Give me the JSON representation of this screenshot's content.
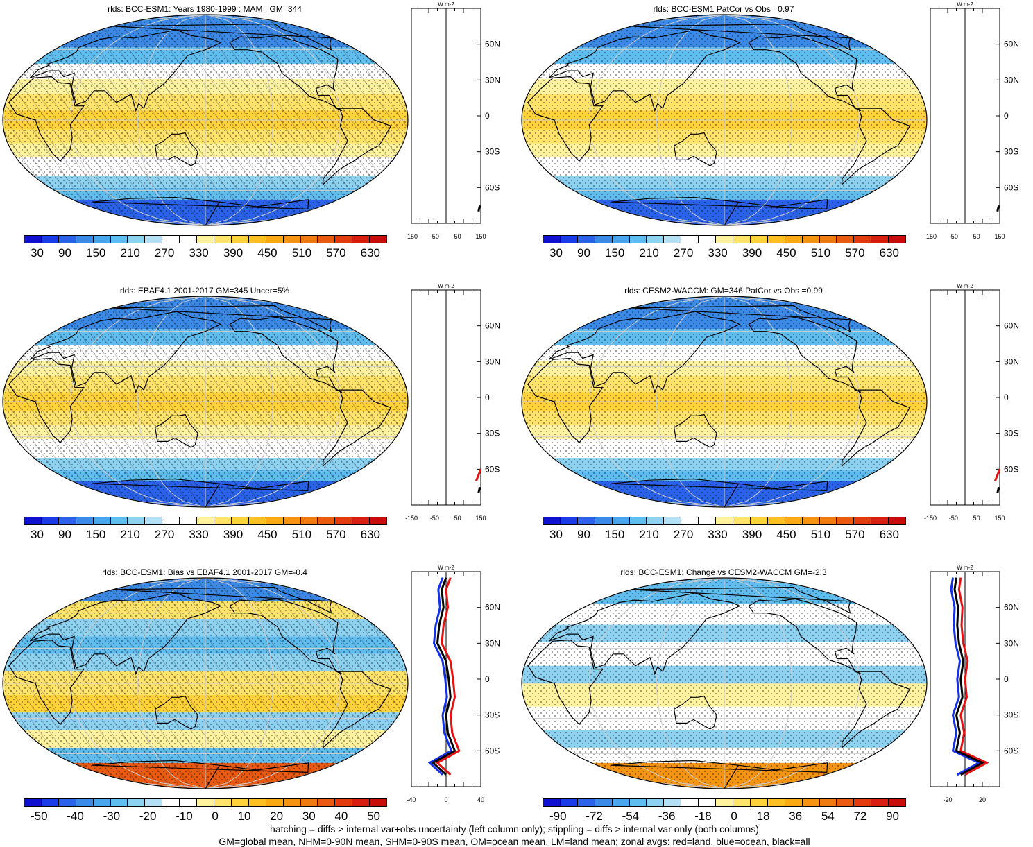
{
  "panels": [
    {
      "title": "rlds: BCC-ESM1: Years 1980-1999 : MAM : GM=344",
      "scale": "abs",
      "ticks": [
        "30",
        "90",
        "150",
        "210",
        "270",
        "330",
        "390",
        "450",
        "510",
        "570",
        "630"
      ],
      "zonal_ticks": [
        "-150",
        "-50",
        "50",
        "150"
      ],
      "zonal_range": [
        -150,
        150
      ],
      "hatched": true
    },
    {
      "title": "rlds: BCC-ESM1 PatCor vs Obs =0.97",
      "scale": "abs",
      "ticks": [
        "30",
        "90",
        "150",
        "210",
        "270",
        "330",
        "390",
        "450",
        "510",
        "570",
        "630"
      ],
      "zonal_ticks": [
        "-150",
        "-50",
        "50",
        "150"
      ],
      "zonal_range": [
        -150,
        150
      ],
      "hatched": false
    },
    {
      "title": "rlds: EBAF4.1 2001-2017 GM=345 Uncer=5%",
      "scale": "abs",
      "ticks": [
        "30",
        "90",
        "150",
        "210",
        "270",
        "330",
        "390",
        "450",
        "510",
        "570",
        "630"
      ],
      "zonal_ticks": [
        "-150",
        "-50",
        "50",
        "150"
      ],
      "zonal_range": [
        -150,
        150
      ],
      "hatched": true
    },
    {
      "title": "rlds: CESM2-WACCM: GM=346 PatCor vs Obs =0.99",
      "scale": "abs",
      "ticks": [
        "30",
        "90",
        "150",
        "210",
        "270",
        "330",
        "390",
        "450",
        "510",
        "570",
        "630"
      ],
      "zonal_ticks": [
        "-150",
        "-50",
        "50",
        "150"
      ],
      "zonal_range": [
        -150,
        150
      ],
      "hatched": false
    },
    {
      "title": "rlds: BCC-ESM1: Bias vs EBAF4.1 2001-2017 GM=-0.4",
      "scale": "bias",
      "ticks": [
        "-50",
        "-40",
        "-30",
        "-20",
        "-10",
        "0",
        "10",
        "20",
        "30",
        "40",
        "50"
      ],
      "zonal_ticks": [
        "-40",
        "0",
        "40"
      ],
      "zonal_range": [
        -40,
        40
      ],
      "hatched": true
    },
    {
      "title": "rlds: BCC-ESM1: Change vs CESM2-WACCM GM=-2.3",
      "scale": "change",
      "ticks": [
        "-90",
        "-72",
        "-54",
        "-36",
        "-18",
        "0",
        "18",
        "36",
        "54",
        "72",
        "90"
      ],
      "zonal_ticks": [
        "-20",
        "20"
      ],
      "zonal_range": [
        -40,
        40
      ],
      "hatched": false
    }
  ],
  "zonal_units": "W m-2",
  "lat_labels": [
    "60N",
    "30N",
    "0",
    "30S",
    "60S"
  ],
  "colors": {
    "abs": [
      "#1010d0",
      "#1a3be8",
      "#2a62ea",
      "#3c8ae8",
      "#4aa6ec",
      "#5fbdf0",
      "#8ed2f2",
      "#b4e0f5",
      "#ffffff",
      "#ffffff",
      "#fff29e",
      "#ffe36a",
      "#ffd23a",
      "#fcc020",
      "#f9aa10",
      "#f49410",
      "#ef7a10",
      "#ea5a10",
      "#e33a10",
      "#d81e10",
      "#c80c08"
    ],
    "diff": [
      "#1010d0",
      "#1a3be8",
      "#2a62ea",
      "#3c8ae8",
      "#4aa6ec",
      "#5fbdf0",
      "#8ed2f2",
      "#b4e0f5",
      "#ffffff",
      "#ffffff",
      "#fff29e",
      "#ffe36a",
      "#ffd23a",
      "#fcc020",
      "#f9aa10",
      "#f49410",
      "#ef7a10",
      "#ea5a10",
      "#e33a10",
      "#d81e10",
      "#c80c08"
    ],
    "land": "#000000",
    "grid": "#cfcfcf",
    "zonal_land": "#e81010",
    "zonal_ocean": "#1430e8",
    "zonal_all": "#000000"
  },
  "footer": [
    "hatching = diffs > internal var+obs uncertainty (left column only); stippling = diffs > internal var only (both columns)",
    "GM=global mean, NHM=0-90N mean, SHM=0-90S mean, OM=ocean mean, LM=land mean; zonal avgs: red=land, blue=ocean, black=all"
  ]
}
